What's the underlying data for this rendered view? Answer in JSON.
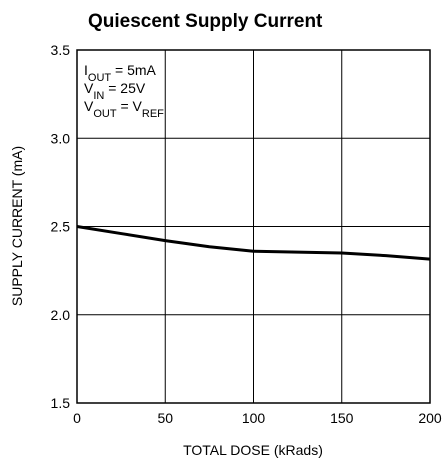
{
  "chart_data": {
    "type": "line",
    "title": "Quiescent Supply Current",
    "x_label": "TOTAL DOSE (kRads)",
    "y_label": "SUPPLY CURRENT (mA)",
    "annotations": [
      [
        "I",
        "OUT",
        " = 5mA"
      ],
      [
        "V",
        "IN",
        " = 25V"
      ],
      [
        "V",
        "OUT",
        " = V",
        "REF"
      ]
    ],
    "x": [
      0,
      25,
      50,
      75,
      100,
      125,
      150,
      175,
      200
    ],
    "series": [
      {
        "color": "#000000",
        "values": [
          2.5,
          2.46,
          2.42,
          2.385,
          2.36,
          2.355,
          2.35,
          2.335,
          2.315
        ]
      }
    ],
    "xlim": [
      0,
      200
    ],
    "xticks": [
      0,
      50,
      100,
      150,
      200
    ],
    "ylim": [
      1.5,
      3.5
    ],
    "yticks": [
      1.5,
      {
        "value": 2,
        "label": "2.0"
      },
      2.5,
      {
        "value": 3,
        "label": "3.0"
      },
      3.5
    ],
    "grid": true
  }
}
